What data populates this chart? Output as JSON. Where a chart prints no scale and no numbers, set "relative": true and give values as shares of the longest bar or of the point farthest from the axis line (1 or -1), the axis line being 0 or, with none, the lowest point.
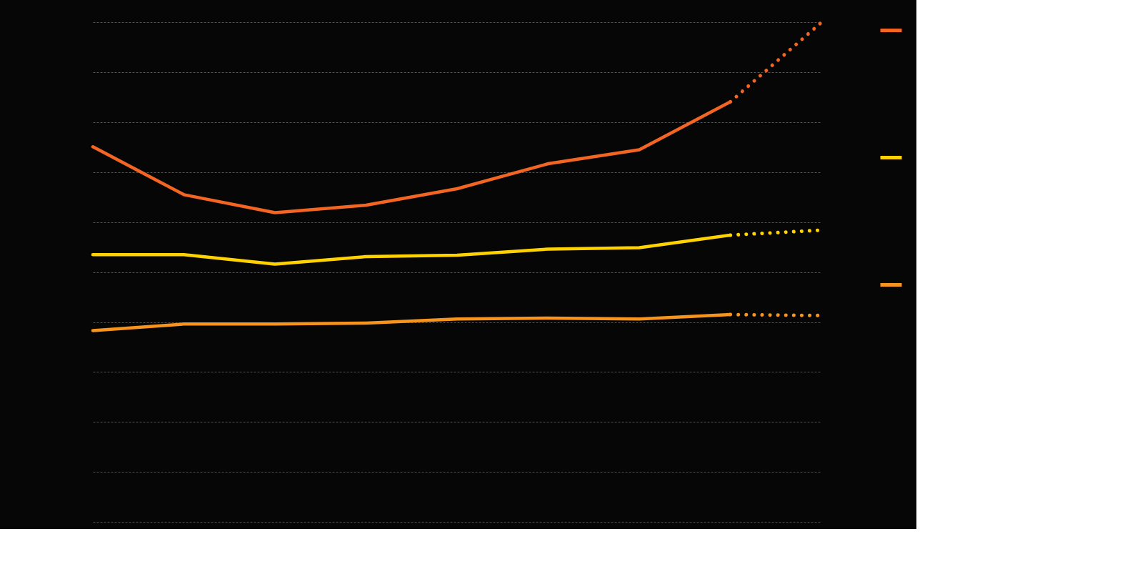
{
  "chart_data": {
    "type": "line",
    "relative": true,
    "grid": "y",
    "categories": [
      null,
      null,
      null,
      null,
      null,
      null,
      null,
      null,
      null
    ],
    "series": [
      {
        "color": "#f26522",
        "line_style": "solid",
        "values": [
          0.751,
          0.655,
          0.619,
          0.634,
          0.667,
          0.717,
          0.745,
          0.841,
          null
        ]
      },
      {
        "color": "#ffd200",
        "line_style": "solid",
        "values": [
          0.535,
          0.535,
          0.516,
          0.531,
          0.534,
          0.546,
          0.549,
          0.574,
          null
        ]
      },
      {
        "color": "#f7941d",
        "line_style": "solid",
        "values": [
          0.383,
          0.396,
          0.396,
          0.398,
          0.406,
          0.408,
          0.406,
          0.415,
          null
        ]
      },
      {
        "color": "#f26522",
        "line_style": "dotted",
        "values": [
          null,
          null,
          null,
          null,
          null,
          null,
          null,
          0.841,
          1.0
        ]
      },
      {
        "color": "#ffd200",
        "line_style": "dotted",
        "values": [
          null,
          null,
          null,
          null,
          null,
          null,
          null,
          0.574,
          0.584
        ]
      },
      {
        "color": "#f7941d",
        "line_style": "dotted",
        "values": [
          null,
          null,
          null,
          null,
          null,
          null,
          null,
          0.415,
          0.413
        ]
      }
    ]
  }
}
